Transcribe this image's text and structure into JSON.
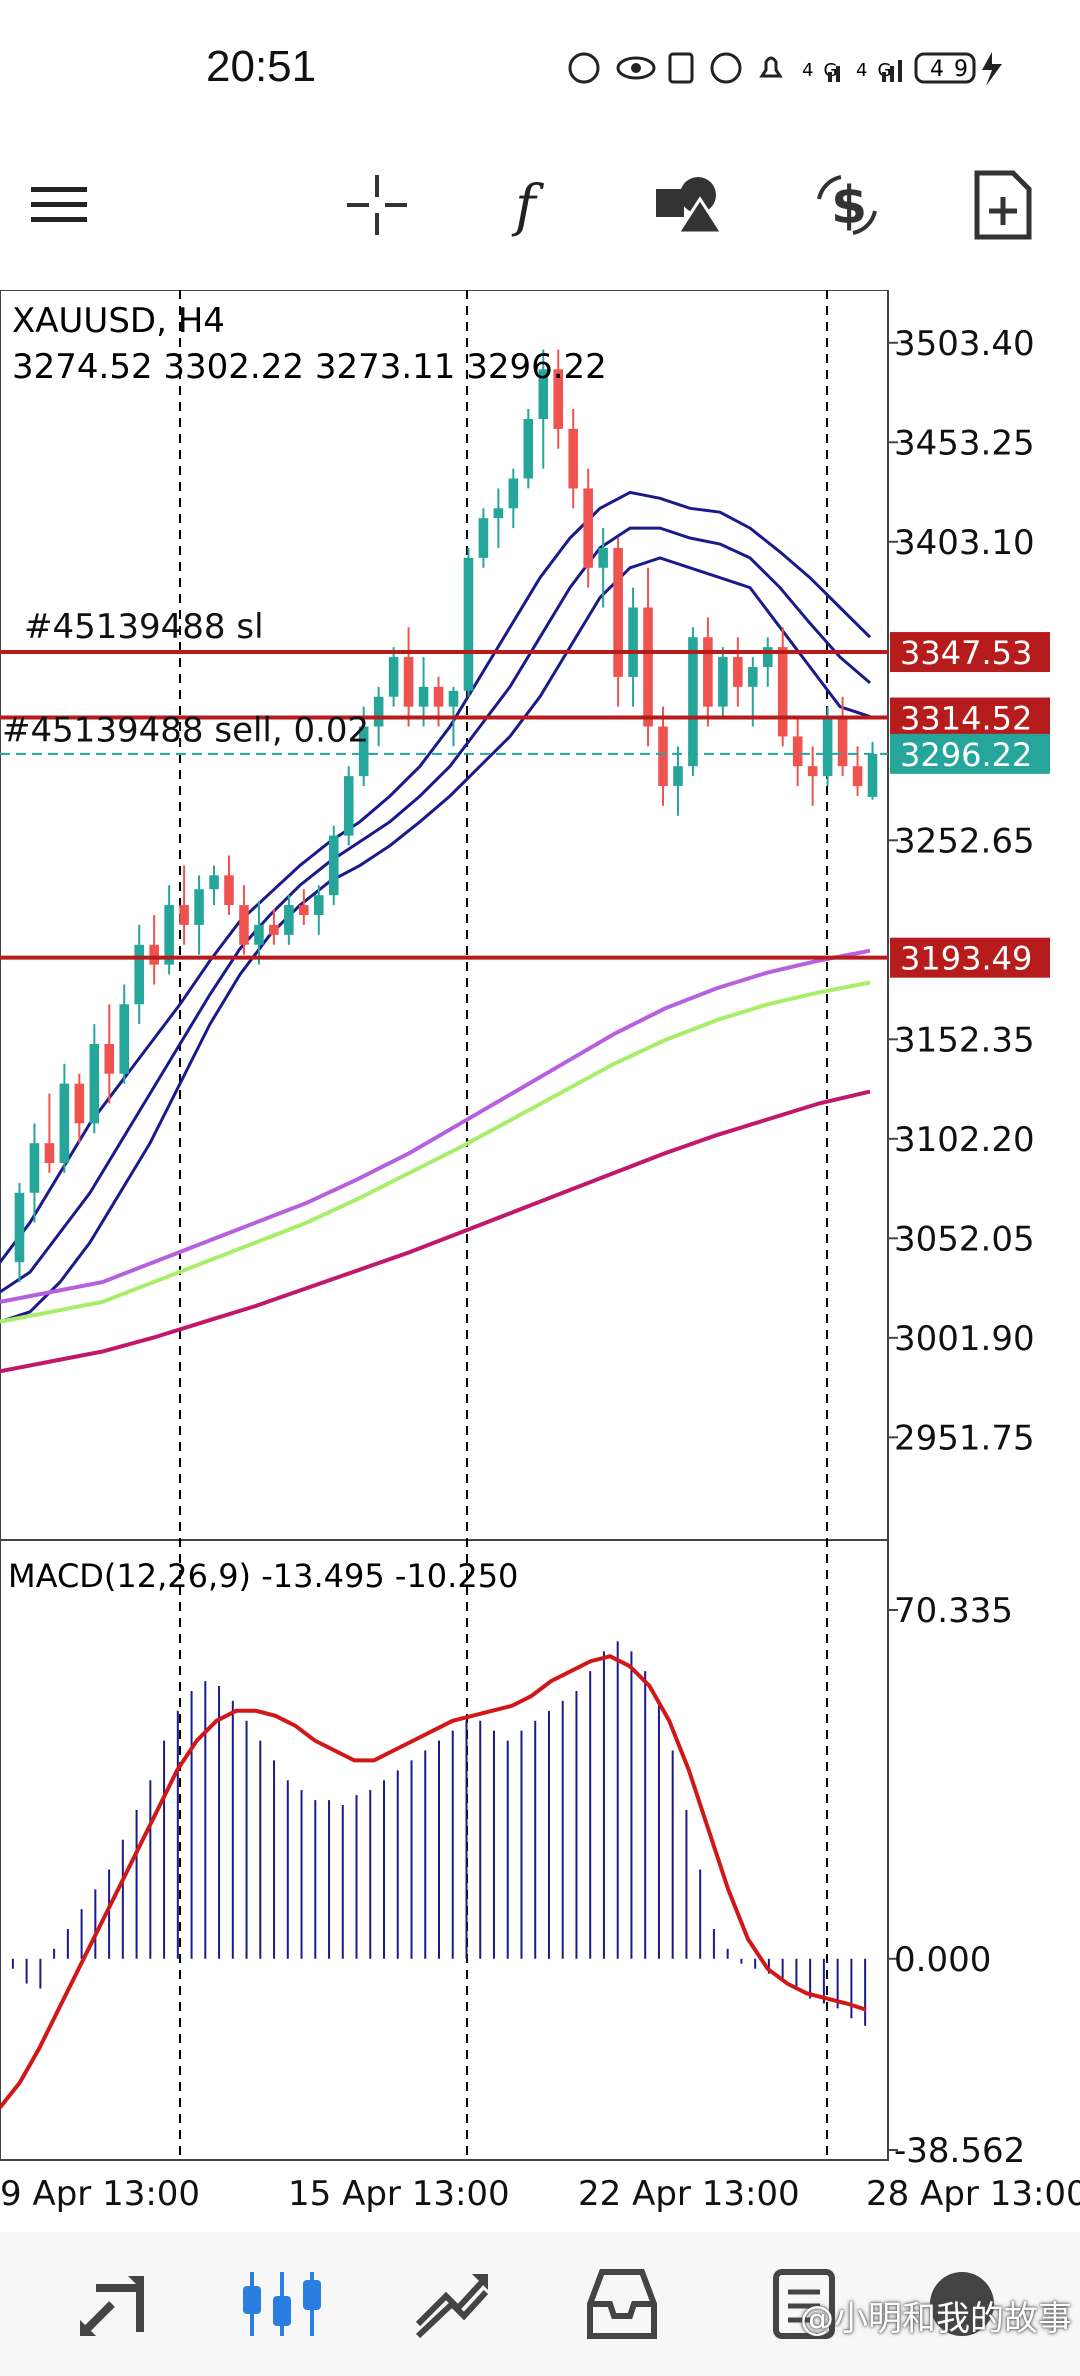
{
  "status": {
    "time": "20:51",
    "battery": "49",
    "icons": "⊕ 👁 N ⏰ 🔕 4G 4G 49 ⚡"
  },
  "toolbar": {
    "menu_icon": "menu-icon",
    "crosshair_icon": "crosshair-icon",
    "indicator_icon": "function-icon",
    "objects_icon": "shapes-icon",
    "trade_icon": "dollar-refresh-icon",
    "new_order_icon": "add-document-icon"
  },
  "watermark": "小明和我的故事",
  "colors": {
    "bull": "#26a69a",
    "bear": "#ef5350",
    "bbands": "#1a1a8c",
    "ma_fast": "#b660e0",
    "ma_mid": "#a8ee6a",
    "ma_slow": "#c0186a",
    "level": "#b71c1c",
    "last": "#26a69a",
    "macd_hist": "#1a1a8c",
    "macd_signal": "#d01818"
  },
  "chart_data": [
    {
      "type": "candlestick",
      "title": "XAUUSD, H4",
      "ohlc_label": "3274.52 3302.22 3273.11 3296.22",
      "price_ticks": [
        "3503.40",
        "3453.25",
        "3403.10",
        "3252.65",
        "3152.35",
        "3102.20",
        "3052.05",
        "3001.90",
        "2951.75"
      ],
      "ylim": [
        2900,
        3530
      ],
      "x_labels": [
        "9 Apr 13:00",
        "15 Apr 13:00",
        "22 Apr 13:00",
        "28 Apr 13:00"
      ],
      "levels": [
        {
          "price": 3347.53,
          "label": "3347.53",
          "text": "#45139488 sl"
        },
        {
          "price": 3314.52,
          "label": "3314.52",
          "text": "#45139488 sell, 0.02"
        },
        {
          "price": 3193.49,
          "label": "3193.49",
          "text": ""
        }
      ],
      "last_price": {
        "price": 3296.22,
        "label": "3296.22"
      },
      "candles": [
        [
          3040,
          3080,
          3030,
          3075
        ],
        [
          3075,
          3110,
          3060,
          3100
        ],
        [
          3100,
          3125,
          3085,
          3090
        ],
        [
          3090,
          3140,
          3085,
          3130
        ],
        [
          3130,
          3135,
          3100,
          3110
        ],
        [
          3110,
          3160,
          3105,
          3150
        ],
        [
          3150,
          3170,
          3120,
          3135
        ],
        [
          3135,
          3180,
          3130,
          3170
        ],
        [
          3170,
          3210,
          3160,
          3200
        ],
        [
          3200,
          3215,
          3180,
          3190
        ],
        [
          3190,
          3230,
          3185,
          3220
        ],
        [
          3220,
          3240,
          3200,
          3210
        ],
        [
          3210,
          3235,
          3195,
          3228
        ],
        [
          3228,
          3240,
          3220,
          3235
        ],
        [
          3235,
          3245,
          3215,
          3220
        ],
        [
          3220,
          3230,
          3195,
          3200
        ],
        [
          3200,
          3222,
          3190,
          3210
        ],
        [
          3210,
          3218,
          3200,
          3205
        ],
        [
          3205,
          3225,
          3200,
          3220
        ],
        [
          3220,
          3228,
          3210,
          3215
        ],
        [
          3215,
          3230,
          3205,
          3225
        ],
        [
          3225,
          3260,
          3220,
          3255
        ],
        [
          3255,
          3290,
          3250,
          3285
        ],
        [
          3285,
          3320,
          3280,
          3310
        ],
        [
          3310,
          3330,
          3300,
          3325
        ],
        [
          3325,
          3350,
          3320,
          3345
        ],
        [
          3345,
          3360,
          3310,
          3320
        ],
        [
          3320,
          3345,
          3310,
          3330
        ],
        [
          3330,
          3335,
          3310,
          3320
        ],
        [
          3320,
          3330,
          3300,
          3328
        ],
        [
          3328,
          3400,
          3325,
          3395
        ],
        [
          3395,
          3420,
          3390,
          3415
        ],
        [
          3415,
          3430,
          3400,
          3420
        ],
        [
          3420,
          3440,
          3410,
          3435
        ],
        [
          3435,
          3470,
          3430,
          3465
        ],
        [
          3465,
          3500,
          3440,
          3490
        ],
        [
          3490,
          3500,
          3450,
          3460
        ],
        [
          3460,
          3470,
          3420,
          3430
        ],
        [
          3430,
          3440,
          3380,
          3390
        ],
        [
          3390,
          3410,
          3370,
          3400
        ],
        [
          3400,
          3405,
          3320,
          3335
        ],
        [
          3335,
          3380,
          3320,
          3370
        ],
        [
          3370,
          3390,
          3300,
          3310
        ],
        [
          3310,
          3320,
          3270,
          3280
        ],
        [
          3280,
          3300,
          3265,
          3290
        ],
        [
          3290,
          3360,
          3285,
          3355
        ],
        [
          3355,
          3365,
          3310,
          3320
        ],
        [
          3320,
          3350,
          3315,
          3345
        ],
        [
          3345,
          3355,
          3320,
          3330
        ],
        [
          3330,
          3345,
          3310,
          3340
        ],
        [
          3340,
          3355,
          3330,
          3350
        ],
        [
          3350,
          3360,
          3300,
          3305
        ],
        [
          3305,
          3315,
          3280,
          3290
        ],
        [
          3290,
          3300,
          3270,
          3285
        ],
        [
          3285,
          3320,
          3280,
          3315
        ],
        [
          3315,
          3325,
          3285,
          3290
        ],
        [
          3290,
          3300,
          3275,
          3280
        ],
        [
          3274.52,
          3302.22,
          3273.11,
          3296.22
        ]
      ],
      "overlays": [
        {
          "kind": "bbands",
          "color": "#1a1a8c",
          "lines": [
            [
              3010,
              3015,
              3030,
              3050,
              3075,
              3100,
              3130,
              3160,
              3185,
              3205,
              3220,
              3232,
              3240,
              3250,
              3262,
              3275,
              3290,
              3305,
              3325,
              3350,
              3375,
              3390,
              3395,
              3390,
              3385,
              3380,
              3360,
              3340,
              3320,
              3315
            ],
            [
              3025,
              3035,
              3055,
              3075,
              3100,
              3125,
              3150,
              3175,
              3198,
              3215,
              3230,
              3242,
              3252,
              3262,
              3275,
              3290,
              3310,
              3330,
              3355,
              3380,
              3400,
              3410,
              3410,
              3405,
              3402,
              3395,
              3380,
              3362,
              3345,
              3332
            ],
            [
              3040,
              3060,
              3085,
              3110,
              3130,
              3150,
              3170,
              3192,
              3212,
              3226,
              3240,
              3252,
              3262,
              3275,
              3290,
              3310,
              3335,
              3360,
              3385,
              3405,
              3420,
              3428,
              3425,
              3420,
              3418,
              3410,
              3398,
              3385,
              3370,
              3355
            ]
          ]
        },
        {
          "kind": "ma",
          "color": "#b660e0",
          "values": [
            3020,
            3025,
            3030,
            3040,
            3050,
            3060,
            3070,
            3082,
            3095,
            3110,
            3125,
            3140,
            3155,
            3168,
            3178,
            3186,
            3192,
            3197
          ]
        },
        {
          "kind": "ma",
          "color": "#a8ee6a",
          "values": [
            3010,
            3015,
            3020,
            3030,
            3040,
            3050,
            3060,
            3072,
            3085,
            3098,
            3112,
            3126,
            3140,
            3152,
            3162,
            3170,
            3176,
            3181
          ]
        },
        {
          "kind": "ma",
          "color": "#c0186a",
          "values": [
            2985,
            2990,
            2995,
            3002,
            3010,
            3018,
            3027,
            3036,
            3045,
            3055,
            3065,
            3075,
            3085,
            3095,
            3104,
            3112,
            3120,
            3126
          ]
        }
      ]
    },
    {
      "type": "macd",
      "title": "MACD(12,26,9) -13.495 -10.250",
      "yticks": [
        "70.335",
        "0.000",
        "-38.562"
      ],
      "ylim": [
        -38.562,
        70.335
      ],
      "histogram": [
        -2,
        -5,
        -6,
        2,
        6,
        10,
        14,
        18,
        24,
        30,
        36,
        44,
        50,
        54,
        56,
        55,
        52,
        48,
        44,
        40,
        36,
        34,
        32,
        32,
        31,
        33,
        34,
        36,
        38,
        40,
        42,
        44,
        46,
        48,
        48,
        46,
        44,
        46,
        48,
        50,
        52,
        54,
        58,
        62,
        64,
        62,
        58,
        52,
        42,
        30,
        18,
        6,
        2,
        -1,
        -2,
        -3,
        -4,
        -6,
        -8,
        -9,
        -10,
        -12,
        -13.5
      ],
      "signal": [
        -30,
        -25,
        -18,
        -10,
        -2,
        6,
        14,
        22,
        30,
        38,
        44,
        48,
        50,
        50,
        49,
        47,
        44,
        42,
        40,
        40,
        42,
        44,
        46,
        48,
        49,
        50,
        51,
        53,
        56,
        58,
        60,
        61,
        59,
        55,
        48,
        38,
        26,
        14,
        4,
        -2,
        -5,
        -7,
        -8,
        -9,
        -10.25
      ]
    }
  ]
}
